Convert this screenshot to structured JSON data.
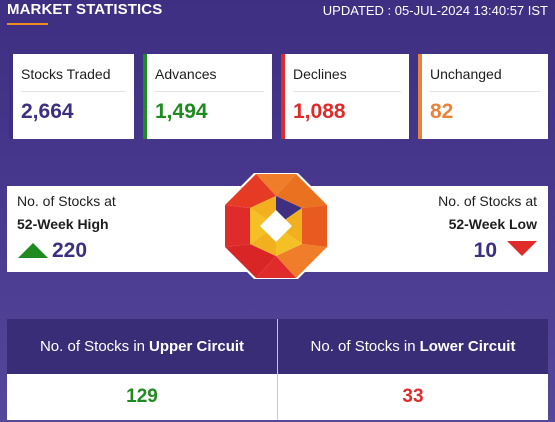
{
  "header": {
    "title": "MARKET STATISTICS",
    "updated": "UPDATED : 05-JUL-2024 13:40:57 IST"
  },
  "cards": [
    {
      "label": "Stocks Traded",
      "value": "2,664"
    },
    {
      "label": "Advances",
      "value": "1,494"
    },
    {
      "label": "Declines",
      "value": "1,088"
    },
    {
      "label": "Unchanged",
      "value": "82"
    }
  ],
  "week52": {
    "high": {
      "line1": "No. of Stocks at",
      "line2": "52-Week High",
      "value": "220"
    },
    "low": {
      "line1": "No. of Stocks at",
      "line2": "52-Week Low",
      "value": "10"
    }
  },
  "circuit": {
    "upper": {
      "prefix": "No. of Stocks in",
      "bold": "Upper Circuit",
      "value": "129"
    },
    "lower": {
      "prefix": "No. of Stocks in",
      "bold": "Lower Circuit",
      "value": "33"
    }
  },
  "colors": {
    "accent_orange": "#f08a24",
    "stocks_traded": "#3e2f80",
    "advances": "#1f8a1f",
    "declines": "#e02b2b",
    "unchanged": "#e9833a"
  },
  "icons": {
    "up": "triangle-up-icon",
    "down": "triangle-down-icon",
    "logo": "octagon-logo-icon"
  }
}
